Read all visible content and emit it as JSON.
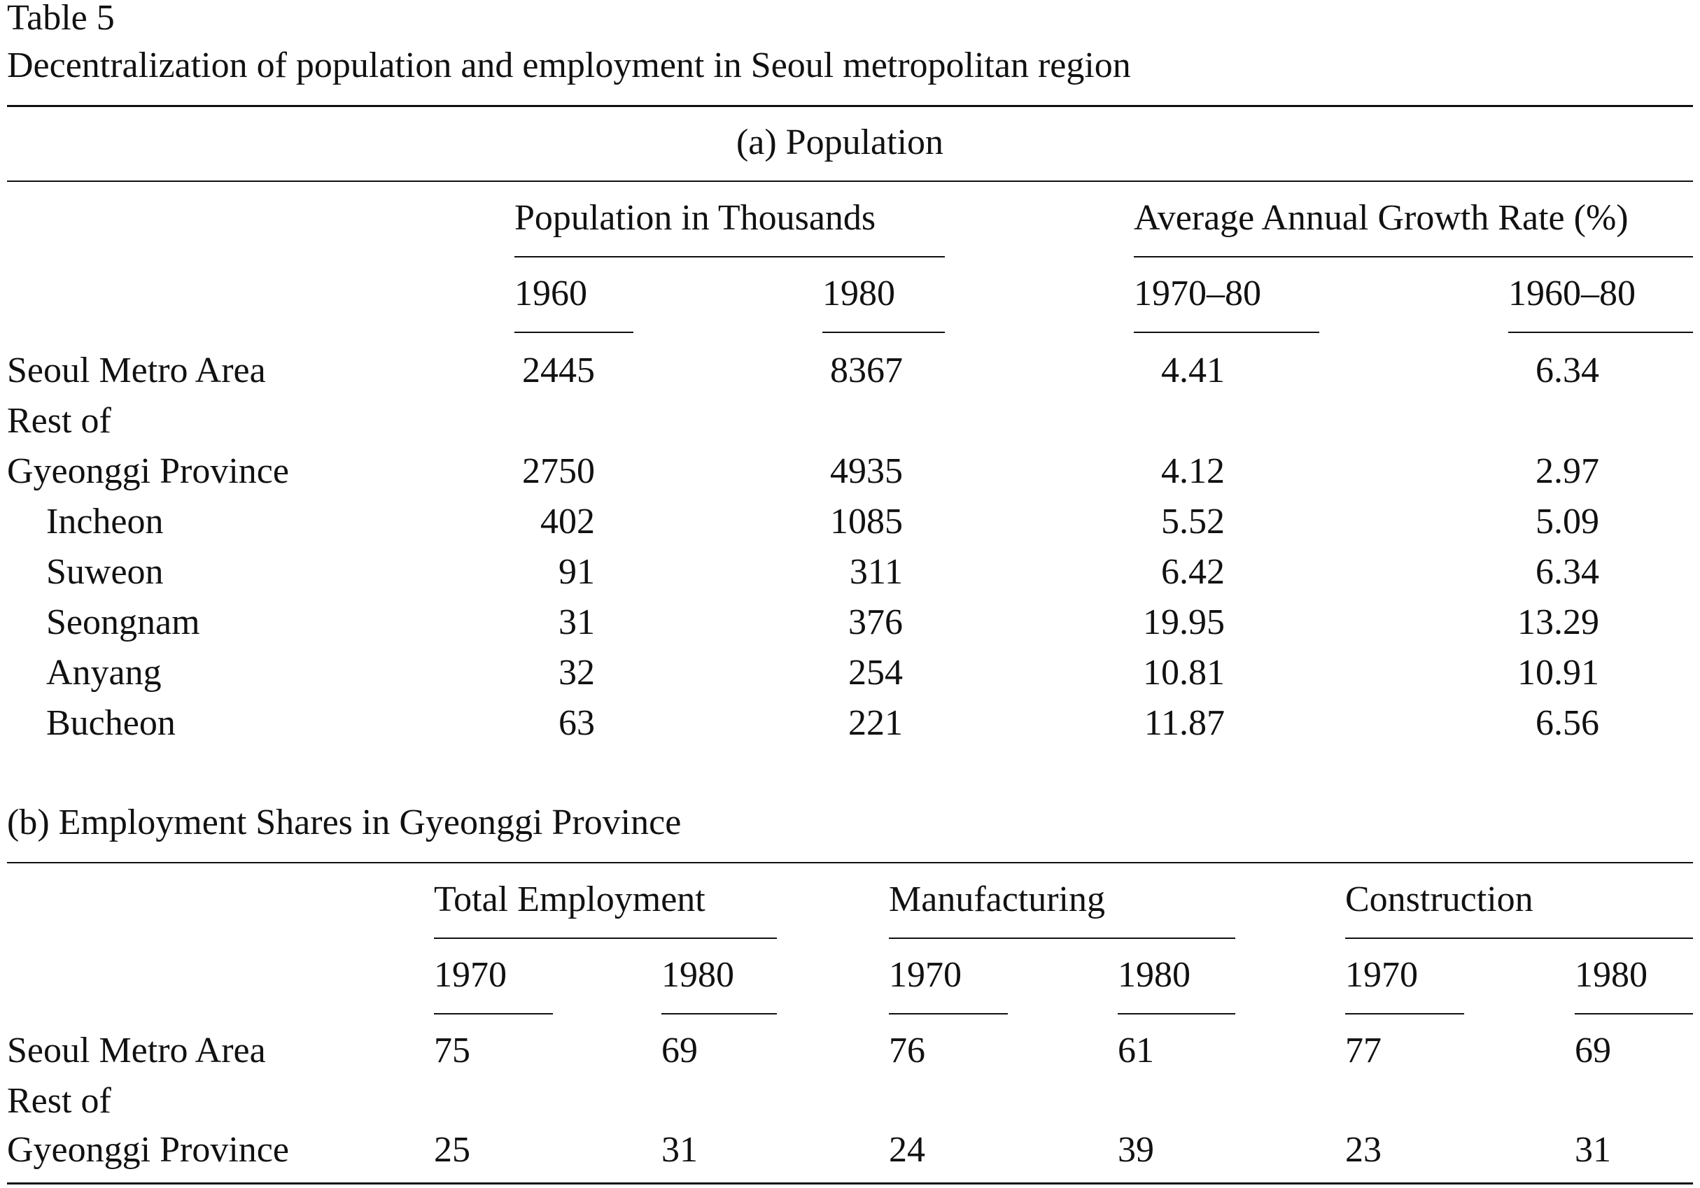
{
  "table": {
    "label": "Table 5",
    "caption": "Decentralization of population and employment in Seoul metropolitan region"
  },
  "panel_a": {
    "title": "(a) Population",
    "group_headers": [
      "Population in Thousands",
      "Average Annual Growth Rate (%)"
    ],
    "column_headers": [
      "1960",
      "1980",
      "1970–80",
      "1960–80"
    ],
    "rows": [
      {
        "label": "Seoul Metro Area",
        "cells": [
          "2445",
          "8367",
          "4.41",
          "6.34"
        ]
      },
      {
        "label": "Rest of",
        "cells": []
      },
      {
        "label": "Gyeonggi Province",
        "cells": [
          "2750",
          "4935",
          "4.12",
          "2.97"
        ]
      },
      {
        "label": "Incheon",
        "cells": [
          "402",
          "1085",
          "5.52",
          "5.09"
        ]
      },
      {
        "label": "Suweon",
        "cells": [
          "91",
          "311",
          "6.42",
          "6.34"
        ]
      },
      {
        "label": "Seongnam",
        "cells": [
          "31",
          "376",
          "19.95",
          "13.29"
        ]
      },
      {
        "label": "Anyang",
        "cells": [
          "32",
          "254",
          "10.81",
          "10.91"
        ]
      },
      {
        "label": "Bucheon",
        "cells": [
          "63",
          "221",
          "11.87",
          "6.56"
        ]
      }
    ]
  },
  "panel_b": {
    "title": "(b) Employment Shares in Gyeonggi Province",
    "group_headers": [
      "Total Employment",
      "Manufacturing",
      "Construction"
    ],
    "column_headers": [
      "1970",
      "1980",
      "1970",
      "1980",
      "1970",
      "1980"
    ],
    "rows": [
      {
        "label": "Seoul Metro Area",
        "cells": [
          "75",
          "69",
          "76",
          "61",
          "77",
          "69"
        ]
      },
      {
        "label": "Rest of",
        "cells": []
      },
      {
        "label": "Gyeonggi Province",
        "cells": [
          "25",
          "31",
          "24",
          "39",
          "23",
          "31"
        ]
      }
    ]
  }
}
